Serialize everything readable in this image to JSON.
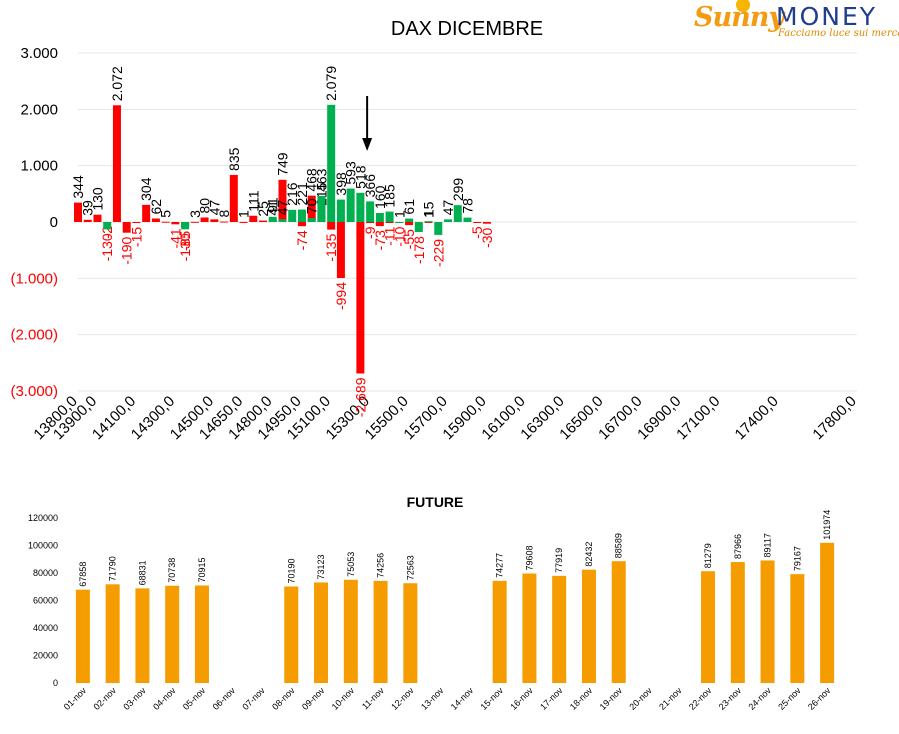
{
  "logo": {
    "word1": "Sunny",
    "word2": "MONEY",
    "tagline": "Facciamo luce sui mercati"
  },
  "colors": {
    "negative": "#ff0000",
    "positive": "#00b050",
    "future_bar": "#f59c00",
    "grid": "#e6e6e6"
  },
  "chart_data": [
    {
      "type": "bar",
      "title": "DAX DICEMBRE",
      "ylim": [
        -3000,
        3000
      ],
      "yticks": [
        3000,
        2000,
        1000,
        0,
        -1000,
        -2000,
        -3000
      ],
      "ytick_labels": [
        "3.000",
        "2.000",
        "1.000",
        "0",
        "(1.000)",
        "(2.000)",
        "(3.000)"
      ],
      "xlim": [
        13800,
        17800
      ],
      "xticks": [
        13800,
        13900,
        14100,
        14300,
        14500,
        14650,
        14800,
        14950,
        15100,
        15300,
        15500,
        15700,
        15900,
        16100,
        16300,
        16500,
        16700,
        16900,
        17100,
        17400,
        17800
      ],
      "xtick_labels": [
        "13800,0",
        "13900,0",
        "14100,0",
        "14300,0",
        "14500,0",
        "14650,0",
        "14800,0",
        "14950,0",
        "15100,0",
        "15300,0",
        "15500,0",
        "15700,0",
        "15900,0",
        "16100,0",
        "16300,0",
        "16500,0",
        "16700,0",
        "16900,0",
        "17100,0",
        "17400,0",
        "17800,0"
      ],
      "grid": true,
      "marker_arrow_at": 15300,
      "series": [
        {
          "color": "negative",
          "points": [
            {
              "x": 13800,
              "y": 344,
              "label": "344"
            },
            {
              "x": 13850,
              "y": 39,
              "label": "39"
            },
            {
              "x": 13900,
              "y": 130,
              "label": "130"
            },
            {
              "x": 13950,
              "y": -2,
              "label": "-2"
            },
            {
              "x": 14000,
              "y": 2072,
              "label": "2.072"
            },
            {
              "x": 14050,
              "y": -190,
              "label": "-190"
            },
            {
              "x": 14100,
              "y": -15,
              "label": "-15"
            },
            {
              "x": 14150,
              "y": 304,
              "label": "304"
            },
            {
              "x": 14200,
              "y": 62,
              "label": "62"
            },
            {
              "x": 14250,
              "y": 5,
              "label": "5"
            },
            {
              "x": 14300,
              "y": -41,
              "label": "-41"
            },
            {
              "x": 14350,
              "y": -85,
              "label": "-85"
            },
            {
              "x": 14400,
              "y": 3,
              "label": "3"
            },
            {
              "x": 14450,
              "y": 80,
              "label": "80"
            },
            {
              "x": 14500,
              "y": 47,
              "label": "47"
            },
            {
              "x": 14550,
              "y": 8,
              "label": "8"
            },
            {
              "x": 14600,
              "y": 835,
              "label": "835"
            },
            {
              "x": 14650,
              "y": 1,
              "label": "1"
            },
            {
              "x": 14700,
              "y": 111,
              "label": "111"
            },
            {
              "x": 14750,
              "y": 25,
              "label": "25"
            },
            {
              "x": 14800,
              "y": 41,
              "label": "41"
            },
            {
              "x": 14850,
              "y": 749,
              "label": "749"
            },
            {
              "x": 14950,
              "y": -74,
              "label": "-74"
            },
            {
              "x": 15000,
              "y": 468,
              "label": "468"
            },
            {
              "x": 15050,
              "y": 215,
              "label": "215"
            },
            {
              "x": 15100,
              "y": -135,
              "label": "-135"
            },
            {
              "x": 15150,
              "y": -994,
              "label": "-994"
            },
            {
              "x": 15250,
              "y": -2689,
              "label": "-2.689"
            },
            {
              "x": 15300,
              "y": -9,
              "label": "-9"
            },
            {
              "x": 15350,
              "y": -73,
              "label": "-73"
            },
            {
              "x": 15400,
              "y": -11,
              "label": "-11"
            },
            {
              "x": 15450,
              "y": 1,
              "label": "1"
            },
            {
              "x": 15500,
              "y": -55,
              "label": "-55"
            },
            {
              "x": 15600,
              "y": 1,
              "label": "1"
            },
            {
              "x": 15850,
              "y": -5,
              "label": "-5"
            },
            {
              "x": 15900,
              "y": -30,
              "label": "-30"
            }
          ]
        },
        {
          "color": "positive",
          "points": [
            {
              "x": 13950,
              "y": -130,
              "label": "-130"
            },
            {
              "x": 14350,
              "y": -130,
              "label": "-130"
            },
            {
              "x": 14800,
              "y": 91,
              "label": "91"
            },
            {
              "x": 14850,
              "y": 47,
              "label": "47"
            },
            {
              "x": 14900,
              "y": 216,
              "label": "216"
            },
            {
              "x": 14950,
              "y": 221,
              "label": "221"
            },
            {
              "x": 15000,
              "y": 70,
              "label": "70"
            },
            {
              "x": 15050,
              "y": 463,
              "label": "463"
            },
            {
              "x": 15100,
              "y": 2079,
              "label": "2.079"
            },
            {
              "x": 15150,
              "y": 398,
              "label": "398"
            },
            {
              "x": 15200,
              "y": 593,
              "label": "593"
            },
            {
              "x": 15250,
              "y": 518,
              "label": "518"
            },
            {
              "x": 15300,
              "y": 366,
              "label": "366"
            },
            {
              "x": 15350,
              "y": 160,
              "label": "160"
            },
            {
              "x": 15400,
              "y": 185,
              "label": "185"
            },
            {
              "x": 15450,
              "y": -10,
              "label": "-10"
            },
            {
              "x": 15500,
              "y": 61,
              "label": "61"
            },
            {
              "x": 15550,
              "y": -178,
              "label": "-178"
            },
            {
              "x": 15600,
              "y": 15,
              "label": "15"
            },
            {
              "x": 15650,
              "y": -229,
              "label": "-229"
            },
            {
              "x": 15700,
              "y": 47,
              "label": "47"
            },
            {
              "x": 15750,
              "y": 299,
              "label": "299"
            },
            {
              "x": 15800,
              "y": 78,
              "label": "78"
            }
          ]
        }
      ]
    },
    {
      "type": "bar",
      "title": "FUTURE",
      "ylim": [
        0,
        120000
      ],
      "yticks": [
        0,
        20000,
        40000,
        60000,
        80000,
        100000,
        120000
      ],
      "ytick_labels": [
        "0",
        "20000",
        "40000",
        "60000",
        "80000",
        "100000",
        "120000"
      ],
      "categories": [
        "01-nov",
        "02-nov",
        "03-nov",
        "04-nov",
        "05-nov",
        "06-nov",
        "07-nov",
        "08-nov",
        "09-nov",
        "10-nov",
        "11-nov",
        "12-nov",
        "13-nov",
        "14-nov",
        "15-nov",
        "16-nov",
        "17-nov",
        "18-nov",
        "19-nov",
        "20-nov",
        "21-nov",
        "22-nov",
        "23-nov",
        "24-nov",
        "25-nov",
        "26-nov"
      ],
      "values": [
        67858,
        71790,
        68831,
        70738,
        70915,
        null,
        null,
        70190,
        73123,
        75053,
        74256,
        72563,
        null,
        null,
        74277,
        79608,
        77919,
        82432,
        88589,
        null,
        null,
        81279,
        87966,
        89117,
        79167,
        101974
      ]
    }
  ]
}
